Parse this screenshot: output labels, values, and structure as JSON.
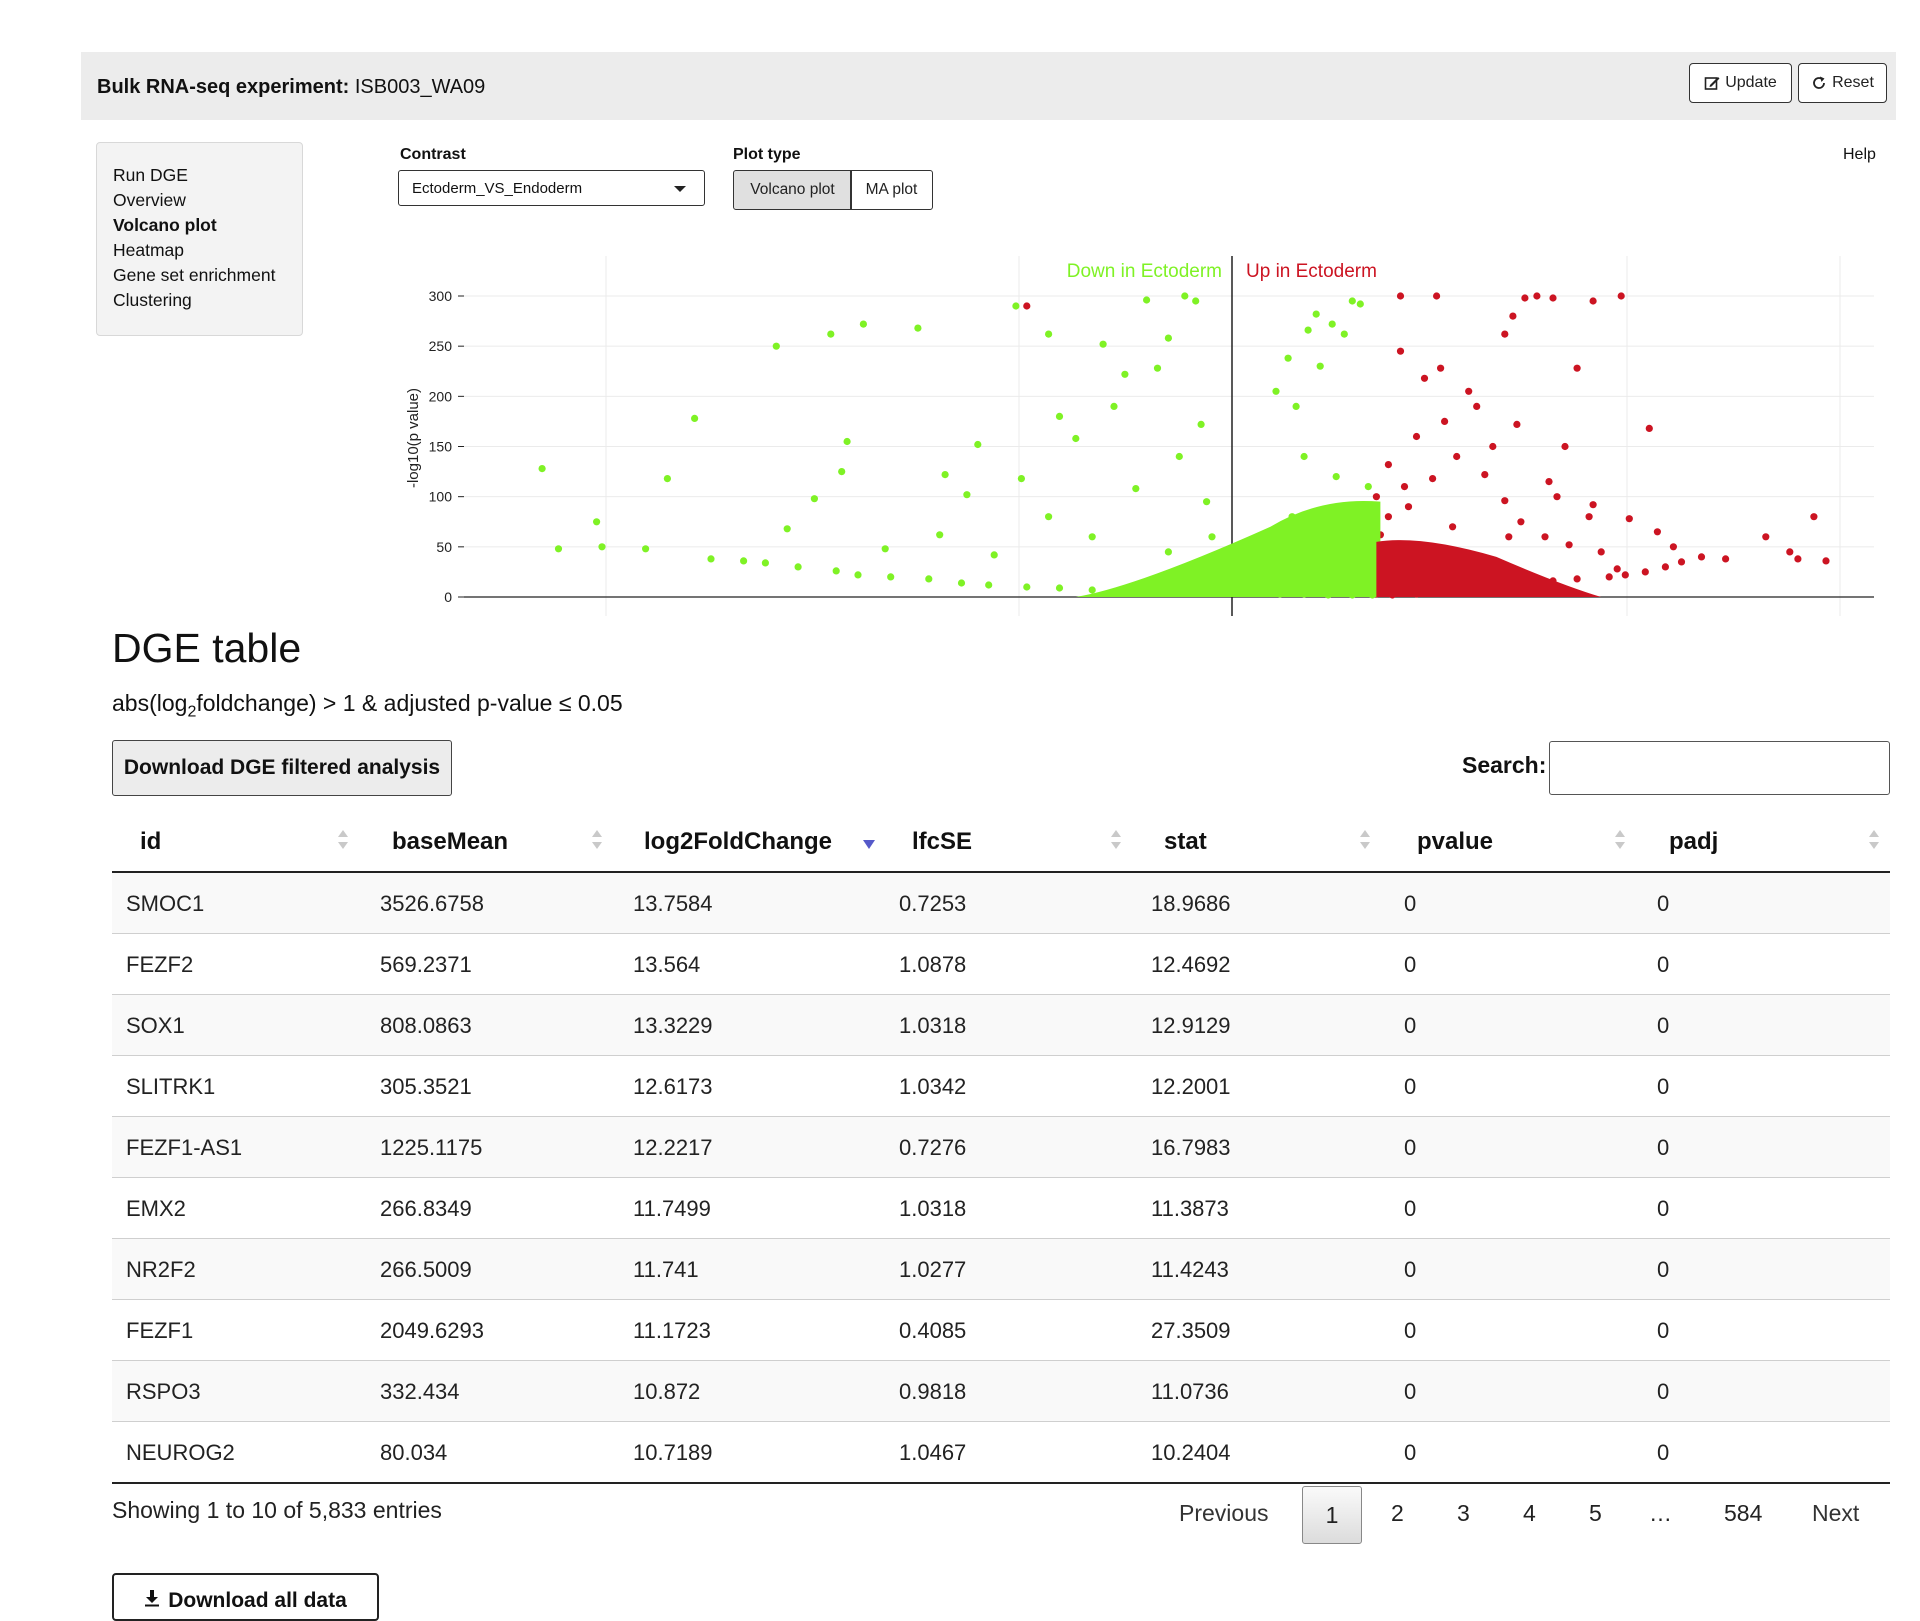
{
  "header": {
    "title_prefix": "Bulk RNA-seq experiment:",
    "experiment": "ISB003_WA09",
    "update_label": "Update",
    "reset_label": "Reset"
  },
  "sidebar": {
    "items": [
      {
        "label": "Run DGE"
      },
      {
        "label": "Overview"
      },
      {
        "label": "Volcano plot"
      },
      {
        "label": "Heatmap"
      },
      {
        "label": "Gene set enrichment"
      },
      {
        "label": "Clustering"
      }
    ],
    "active": "Volcano plot"
  },
  "controls": {
    "contrast_label": "Contrast",
    "contrast_value": "Ectoderm_VS_Endoderm",
    "plot_type_label": "Plot type",
    "plot_types": [
      "Volcano plot",
      "MA plot"
    ],
    "plot_type_selected": "Volcano plot",
    "help": "Help"
  },
  "chart_data": {
    "type": "scatter",
    "title": "",
    "ylabel": "-log10(p value)",
    "ylim": [
      0,
      300
    ],
    "yticks": [
      0,
      50,
      100,
      150,
      200,
      250,
      300
    ],
    "xlim": [
      -15,
      15
    ],
    "grid": true,
    "series": [
      {
        "name": "Down in Ectoderm",
        "color": "#7ff225",
        "points": [
          [
            -12.3,
            128
          ],
          [
            -12.0,
            48
          ],
          [
            -11.3,
            75
          ],
          [
            -11.2,
            50
          ],
          [
            -10.4,
            48
          ],
          [
            -10.0,
            118
          ],
          [
            -9.5,
            178
          ],
          [
            -8.0,
            250
          ],
          [
            -7.8,
            68
          ],
          [
            -7.3,
            98
          ],
          [
            -7.0,
            262
          ],
          [
            -6.7,
            155
          ],
          [
            -6.8,
            125
          ],
          [
            -6.4,
            272
          ],
          [
            -5.4,
            268
          ],
          [
            -4.9,
            122
          ],
          [
            -4.3,
            152
          ],
          [
            -4.5,
            102
          ],
          [
            -3.6,
            290
          ],
          [
            -3.0,
            262
          ],
          [
            -2.0,
            252
          ],
          [
            -1.2,
            296
          ],
          [
            -0.8,
            258
          ],
          [
            -0.5,
            300
          ],
          [
            -0.3,
            295
          ],
          [
            -1.8,
            190
          ],
          [
            -2.8,
            180
          ],
          [
            -3.5,
            118
          ],
          [
            -6.0,
            48
          ],
          [
            -5.0,
            62
          ],
          [
            -4.0,
            42
          ],
          [
            -3.0,
            80
          ],
          [
            -2.2,
            60
          ],
          [
            -1.4,
            108
          ],
          [
            -0.6,
            140
          ],
          [
            -1.0,
            228
          ],
          [
            -2.5,
            158
          ],
          [
            -1.6,
            222
          ],
          [
            -0.2,
            172
          ],
          [
            0.1,
            205
          ],
          [
            0.4,
            238
          ],
          [
            0.6,
            190
          ],
          [
            0.9,
            266
          ],
          [
            1.1,
            282
          ],
          [
            1.2,
            230
          ],
          [
            1.5,
            272
          ],
          [
            1.8,
            262
          ],
          [
            2.0,
            295
          ],
          [
            2.2,
            292
          ],
          [
            -9.2,
            38
          ],
          [
            -8.6,
            36
          ],
          [
            -8.2,
            34
          ],
          [
            -7.6,
            30
          ],
          [
            -6.9,
            26
          ],
          [
            -6.5,
            22
          ],
          [
            -5.9,
            20
          ],
          [
            -5.2,
            18
          ],
          [
            -4.6,
            14
          ],
          [
            -4.1,
            12
          ],
          [
            -3.4,
            10
          ],
          [
            -2.8,
            9
          ],
          [
            -2.2,
            7
          ],
          [
            -1.6,
            6
          ],
          [
            -1.0,
            5
          ],
          [
            -0.4,
            4
          ],
          [
            0.2,
            3
          ],
          [
            0.8,
            3
          ],
          [
            1.4,
            2
          ],
          [
            2.0,
            2
          ],
          [
            2.5,
            2
          ],
          [
            2.7,
            4
          ],
          [
            1.9,
            40
          ],
          [
            1.2,
            55
          ],
          [
            0.5,
            80
          ],
          [
            -0.1,
            95
          ],
          [
            1.6,
            120
          ],
          [
            0.8,
            140
          ],
          [
            2.4,
            110
          ],
          [
            2.6,
            70
          ],
          [
            1.0,
            35
          ],
          [
            0.3,
            28
          ],
          [
            -0.8,
            45
          ],
          [
            2.1,
            15
          ],
          [
            1.5,
            20
          ],
          [
            2.3,
            50
          ],
          [
            0.0,
            60
          ],
          [
            -0.5,
            22
          ]
        ]
      },
      {
        "name": "Up in Ectoderm",
        "color": "#cc1422",
        "points": [
          [
            -3.4,
            290
          ],
          [
            3.2,
            300
          ],
          [
            4.1,
            300
          ],
          [
            6.3,
            298
          ],
          [
            6.6,
            300
          ],
          [
            7.0,
            298
          ],
          [
            8.0,
            295
          ],
          [
            8.7,
            300
          ],
          [
            5.8,
            262
          ],
          [
            6.0,
            280
          ],
          [
            7.6,
            228
          ],
          [
            4.2,
            228
          ],
          [
            3.2,
            245
          ],
          [
            3.8,
            218
          ],
          [
            9.4,
            168
          ],
          [
            13.5,
            80
          ],
          [
            12.3,
            60
          ],
          [
            12.9,
            45
          ],
          [
            13.8,
            36
          ],
          [
            13.1,
            38
          ],
          [
            11.3,
            38
          ],
          [
            10.7,
            40
          ],
          [
            10.2,
            35
          ],
          [
            9.8,
            30
          ],
          [
            9.3,
            25
          ],
          [
            8.8,
            22
          ],
          [
            8.4,
            20
          ],
          [
            7.6,
            18
          ],
          [
            7.0,
            16
          ],
          [
            6.5,
            14
          ],
          [
            6.0,
            10
          ],
          [
            5.4,
            8
          ],
          [
            4.8,
            6
          ],
          [
            4.2,
            4
          ],
          [
            3.6,
            3
          ],
          [
            3.0,
            2
          ],
          [
            2.6,
            3
          ],
          [
            8.0,
            92
          ],
          [
            7.3,
            150
          ],
          [
            6.1,
            172
          ],
          [
            5.1,
            190
          ],
          [
            4.3,
            175
          ],
          [
            3.6,
            160
          ],
          [
            2.9,
            132
          ],
          [
            2.6,
            100
          ],
          [
            2.7,
            62
          ],
          [
            3.1,
            40
          ],
          [
            3.4,
            90
          ],
          [
            4.0,
            118
          ],
          [
            4.6,
            140
          ],
          [
            5.3,
            122
          ],
          [
            5.8,
            96
          ],
          [
            6.2,
            75
          ],
          [
            6.8,
            60
          ],
          [
            7.4,
            52
          ],
          [
            8.2,
            45
          ],
          [
            8.6,
            28
          ],
          [
            3.0,
            20
          ],
          [
            3.8,
            50
          ],
          [
            4.5,
            70
          ],
          [
            5.0,
            38
          ],
          [
            2.9,
            80
          ],
          [
            2.7,
            50
          ],
          [
            3.3,
            110
          ],
          [
            4.9,
            205
          ],
          [
            5.5,
            150
          ],
          [
            6.9,
            115
          ],
          [
            7.9,
            80
          ],
          [
            8.9,
            78
          ],
          [
            9.6,
            65
          ],
          [
            10.0,
            50
          ],
          [
            7.1,
            100
          ],
          [
            5.9,
            60
          ],
          [
            4.4,
            30
          ],
          [
            3.5,
            12
          ],
          [
            2.8,
            8
          ]
        ]
      }
    ]
  },
  "dge": {
    "title": "DGE table",
    "filter_abs": "abs(log",
    "filter_sub": "2",
    "filter_rest": "foldchange) > 1 & adjusted p-value ≤ 0.05",
    "download_filtered": "Download DGE filtered analysis",
    "search_label": "Search:",
    "search_value": "",
    "columns": [
      "id",
      "baseMean",
      "log2FoldChange",
      "lfcSE",
      "stat",
      "pvalue",
      "padj"
    ],
    "rows": [
      [
        "SMOC1",
        "3526.6758",
        "13.7584",
        "0.7253",
        "18.9686",
        "0",
        "0"
      ],
      [
        "FEZF2",
        "569.2371",
        "13.564",
        "1.0878",
        "12.4692",
        "0",
        "0"
      ],
      [
        "SOX1",
        "808.0863",
        "13.3229",
        "1.0318",
        "12.9129",
        "0",
        "0"
      ],
      [
        "SLITRK1",
        "305.3521",
        "12.6173",
        "1.0342",
        "12.2001",
        "0",
        "0"
      ],
      [
        "FEZF1-AS1",
        "1225.1175",
        "12.2217",
        "0.7276",
        "16.7983",
        "0",
        "0"
      ],
      [
        "EMX2",
        "266.8349",
        "11.7499",
        "1.0318",
        "11.3873",
        "0",
        "0"
      ],
      [
        "NR2F2",
        "266.5009",
        "11.741",
        "1.0277",
        "11.4243",
        "0",
        "0"
      ],
      [
        "FEZF1",
        "2049.6293",
        "11.1723",
        "0.4085",
        "27.3509",
        "0",
        "0"
      ],
      [
        "RSPO3",
        "332.434",
        "10.872",
        "0.9818",
        "11.0736",
        "0",
        "0"
      ],
      [
        "NEUROG2",
        "80.034",
        "10.7189",
        "1.0467",
        "10.2404",
        "0",
        "0"
      ]
    ],
    "info": "Showing 1 to 10 of 5,833 entries",
    "pagination": {
      "previous": "Previous",
      "current": "1",
      "pages": [
        "2",
        "3",
        "4",
        "5"
      ],
      "ellipsis": "…",
      "last": "584",
      "next": "Next"
    },
    "download_all": "Download all data"
  }
}
